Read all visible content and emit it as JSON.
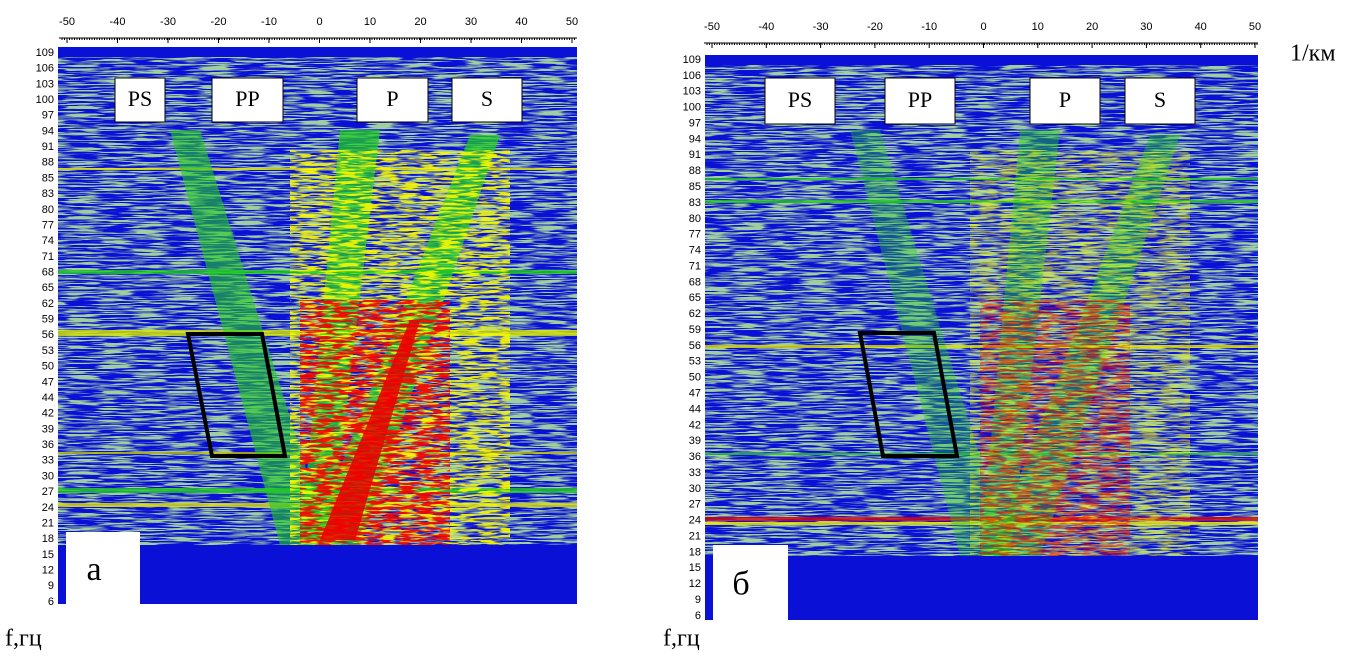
{
  "panels": [
    {
      "letter": "а",
      "markers": [
        "PS",
        "PP",
        "P",
        "S"
      ],
      "xticks": [
        -50,
        -40,
        -30,
        -20,
        -10,
        0,
        10,
        20,
        30,
        40,
        50
      ],
      "yticks": [
        109,
        106,
        103,
        100,
        97,
        94,
        91,
        88,
        85,
        83,
        80,
        77,
        74,
        71,
        68,
        65,
        62,
        59,
        56,
        53,
        50,
        47,
        44,
        42,
        39,
        36,
        33,
        30,
        27,
        24,
        21,
        18,
        15,
        12,
        9,
        6
      ],
      "ylabel": "f,гц"
    },
    {
      "letter": "б",
      "markers": [
        "PS",
        "PP",
        "P",
        "S"
      ],
      "xticks": [
        -50,
        -40,
        -30,
        -20,
        -10,
        0,
        10,
        20,
        30,
        40,
        50
      ],
      "yticks": [
        109,
        106,
        103,
        100,
        97,
        94,
        91,
        88,
        85,
        83,
        80,
        77,
        74,
        71,
        68,
        65,
        62,
        59,
        56,
        53,
        50,
        47,
        44,
        42,
        39,
        36,
        33,
        30,
        27,
        24,
        21,
        18,
        15,
        12,
        9,
        6
      ],
      "ylabel": "f,гц"
    }
  ],
  "xlabel": "1/км"
}
